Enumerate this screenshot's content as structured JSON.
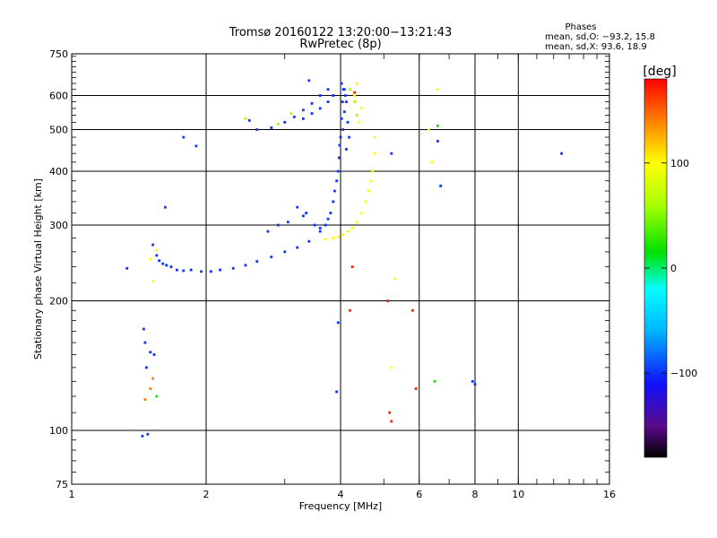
{
  "chart_data": {
    "type": "scatter",
    "title": "Tromsø 20160122 13:20:00−13:21:43",
    "subtitle": "RwPretec (8p)",
    "xlabel": "Frequency [MHz]",
    "ylabel": "Stationary phase Virtual Height [km]",
    "xscale": "log",
    "yscale": "log",
    "xlim": [
      1,
      16
    ],
    "ylim": [
      75,
      750
    ],
    "grid": true,
    "x_ticks": [
      {
        "value": 1,
        "label": "1"
      },
      {
        "value": 2,
        "label": "2"
      },
      {
        "value": 4,
        "label": "4"
      },
      {
        "value": 6,
        "label": "6"
      },
      {
        "value": 8,
        "label": "8"
      },
      {
        "value": 10,
        "label": "10"
      },
      {
        "value": 16,
        "label": "16"
      }
    ],
    "y_ticks": [
      {
        "value": 75,
        "label": "75"
      },
      {
        "value": 100,
        "label": "100"
      },
      {
        "value": 200,
        "label": "200"
      },
      {
        "value": 300,
        "label": "300"
      },
      {
        "value": 400,
        "label": "400"
      },
      {
        "value": 500,
        "label": "500"
      },
      {
        "value": 600,
        "label": "600"
      },
      {
        "value": 750,
        "label": "750"
      }
    ],
    "phases_box": {
      "heading": "Phases",
      "line_o": "mean, sd,O:  −93.2,  15.8",
      "line_x": "mean, sd,X:   93.6,  18.9"
    },
    "colorbar": {
      "label": "[deg]",
      "range": [
        -180,
        180
      ],
      "ticks": [
        {
          "value": 100,
          "label": "100"
        },
        {
          "value": 0,
          "label": "0"
        },
        {
          "value": -100,
          "label": "−100"
        }
      ],
      "stops": [
        {
          "value": -180,
          "color": "#000000"
        },
        {
          "value": -150,
          "color": "#5a0a8c"
        },
        {
          "value": -110,
          "color": "#1010ff"
        },
        {
          "value": -60,
          "color": "#00b4ff"
        },
        {
          "value": -20,
          "color": "#00ffff"
        },
        {
          "value": 15,
          "color": "#00e000"
        },
        {
          "value": 60,
          "color": "#a8ff00"
        },
        {
          "value": 100,
          "color": "#ffff00"
        },
        {
          "value": 140,
          "color": "#ff8000"
        },
        {
          "value": 180,
          "color": "#ff0000"
        }
      ]
    },
    "series": [
      {
        "trace": "F-trace-ordinary-lower",
        "phase": -100,
        "points": [
          [
            1.67,
            240
          ],
          [
            1.72,
            236
          ],
          [
            1.78,
            235
          ],
          [
            1.85,
            236
          ],
          [
            1.95,
            234
          ],
          [
            2.05,
            234
          ],
          [
            2.15,
            236
          ],
          [
            2.3,
            238
          ],
          [
            2.45,
            242
          ],
          [
            2.6,
            247
          ],
          [
            2.8,
            253
          ],
          [
            3.0,
            260
          ],
          [
            3.2,
            266
          ],
          [
            3.4,
            275
          ],
          [
            3.6,
            290
          ],
          [
            3.75,
            310
          ],
          [
            3.85,
            340
          ],
          [
            3.92,
            380
          ],
          [
            3.97,
            430
          ],
          [
            4.0,
            480
          ],
          [
            4.02,
            530
          ],
          [
            4.04,
            580
          ],
          [
            4.06,
            620
          ]
        ]
      },
      {
        "trace": "F-trace-ordinary-cluster",
        "phase": -100,
        "points": [
          [
            1.52,
            270
          ],
          [
            1.55,
            255
          ],
          [
            1.57,
            248
          ],
          [
            1.6,
            244
          ],
          [
            1.63,
            242
          ],
          [
            3.2,
            330
          ],
          [
            3.35,
            320
          ],
          [
            3.5,
            300
          ],
          [
            3.6,
            295
          ],
          [
            3.7,
            300
          ],
          [
            3.8,
            320
          ],
          [
            3.88,
            360
          ],
          [
            3.95,
            400
          ],
          [
            3.98,
            460
          ],
          [
            4.05,
            500
          ],
          [
            4.08,
            550
          ],
          [
            4.1,
            600
          ],
          [
            4.02,
            640
          ],
          [
            4.08,
            620
          ],
          [
            4.12,
            580
          ],
          [
            4.15,
            520
          ],
          [
            4.18,
            480
          ],
          [
            4.12,
            450
          ],
          [
            2.75,
            290
          ],
          [
            2.9,
            300
          ],
          [
            3.05,
            305
          ],
          [
            3.3,
            315
          ]
        ]
      },
      {
        "trace": "F-trace-extraordinary",
        "phase": 100,
        "points": [
          [
            3.7,
            278
          ],
          [
            3.85,
            280
          ],
          [
            3.95,
            282
          ],
          [
            4.05,
            285
          ],
          [
            4.15,
            290
          ],
          [
            4.25,
            295
          ],
          [
            4.35,
            305
          ],
          [
            4.45,
            320
          ],
          [
            4.55,
            340
          ],
          [
            4.62,
            360
          ],
          [
            4.68,
            380
          ],
          [
            4.72,
            400
          ],
          [
            4.76,
            440
          ],
          [
            4.78,
            480
          ],
          [
            4.4,
            520
          ],
          [
            4.45,
            560
          ],
          [
            4.3,
            600
          ],
          [
            4.35,
            640
          ]
        ]
      },
      {
        "trace": "F2-upper-arc",
        "phase": -100,
        "points": [
          [
            2.6,
            500
          ],
          [
            2.8,
            505
          ],
          [
            3.0,
            520
          ],
          [
            3.15,
            535
          ],
          [
            3.3,
            555
          ],
          [
            3.45,
            575
          ],
          [
            3.6,
            600
          ],
          [
            3.75,
            620
          ],
          [
            3.3,
            530
          ],
          [
            3.45,
            545
          ],
          [
            3.6,
            560
          ],
          [
            3.75,
            580
          ],
          [
            3.85,
            600
          ],
          [
            2.5,
            525
          ]
        ]
      },
      {
        "trace": "F2-upper-arc-mixed",
        "phase": 60,
        "points": [
          [
            2.9,
            515
          ],
          [
            3.1,
            545
          ],
          [
            4.2,
            620
          ],
          [
            4.3,
            580
          ],
          [
            4.35,
            540
          ],
          [
            2.45,
            530
          ]
        ]
      },
      {
        "trace": "Es-low-layer",
        "phase": -100,
        "points": [
          [
            1.45,
            172
          ],
          [
            1.46,
            160
          ],
          [
            1.5,
            152
          ],
          [
            1.53,
            150
          ],
          [
            1.47,
            140
          ],
          [
            1.44,
            97
          ],
          [
            1.48,
            98
          ]
        ]
      },
      {
        "trace": "Es-low-layer-orange",
        "phase": 140,
        "points": [
          [
            1.46,
            118
          ],
          [
            1.5,
            125
          ],
          [
            1.52,
            132
          ]
        ]
      },
      {
        "trace": "scatter-blue",
        "phase": -100,
        "points": [
          [
            1.33,
            238
          ],
          [
            1.62,
            330
          ],
          [
            1.78,
            480
          ],
          [
            1.9,
            458
          ],
          [
            3.92,
            123
          ],
          [
            3.95,
            178
          ],
          [
            5.2,
            440
          ],
          [
            6.6,
            470
          ],
          [
            6.7,
            370
          ],
          [
            7.9,
            130
          ],
          [
            8.0,
            128
          ],
          [
            12.5,
            440
          ],
          [
            3.4,
            650
          ]
        ]
      },
      {
        "trace": "scatter-red",
        "phase": 170,
        "points": [
          [
            4.2,
            190
          ],
          [
            4.25,
            240
          ],
          [
            5.1,
            200
          ],
          [
            5.15,
            110
          ],
          [
            5.2,
            105
          ],
          [
            5.8,
            190
          ],
          [
            5.9,
            125
          ],
          [
            4.3,
            610
          ]
        ]
      },
      {
        "trace": "scatter-yellow",
        "phase": 100,
        "points": [
          [
            1.5,
            250
          ],
          [
            1.52,
            222
          ],
          [
            1.55,
            262
          ],
          [
            5.2,
            140
          ],
          [
            5.3,
            225
          ],
          [
            6.3,
            500
          ],
          [
            6.4,
            420
          ],
          [
            6.6,
            620
          ]
        ]
      },
      {
        "trace": "scatter-green",
        "phase": 20,
        "points": [
          [
            1.55,
            120
          ],
          [
            6.5,
            130
          ],
          [
            6.6,
            510
          ]
        ]
      }
    ]
  }
}
